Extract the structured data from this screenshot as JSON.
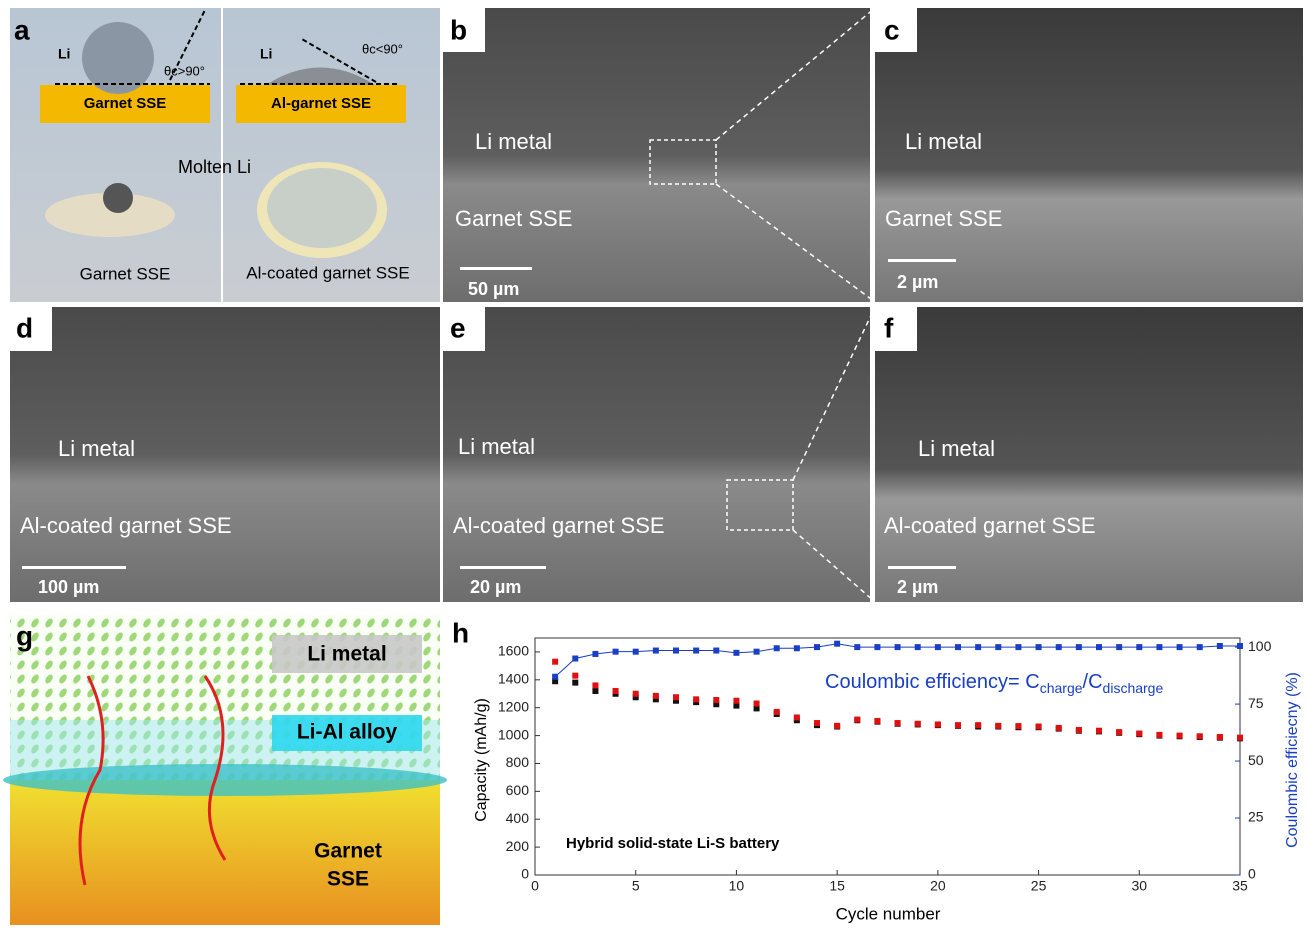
{
  "panels": {
    "a": {
      "label": "a",
      "left_li": "Li",
      "left_angle": "θc>90°",
      "left_substrate": "Garnet SSE",
      "right_li": "Li",
      "right_angle": "θc<90°",
      "right_substrate": "Al-garnet SSE",
      "molten": "Molten Li",
      "left_caption": "Garnet SSE",
      "right_caption": "Al-coated garnet SSE"
    },
    "b": {
      "label": "b",
      "top": "Li metal",
      "bottom": "Garnet SSE",
      "scale": "50 µm"
    },
    "c": {
      "label": "c",
      "top": "Li metal",
      "bottom": "Garnet SSE",
      "scale": "2 µm"
    },
    "d": {
      "label": "d",
      "top": "Li metal",
      "bottom": "Al-coated garnet SSE",
      "scale": "100 µm"
    },
    "e": {
      "label": "e",
      "top": "Li metal",
      "bottom": "Al-coated garnet SSE",
      "scale": "20 µm"
    },
    "f": {
      "label": "f",
      "top": "Li metal",
      "bottom": "Al-coated garnet SSE",
      "scale": "2 µm"
    },
    "g": {
      "label": "g",
      "li": "Li metal",
      "alloy": "Li-Al alloy",
      "garnet_1": "Garnet",
      "garnet_2": "SSE"
    }
  },
  "chart_data": {
    "type": "scatter",
    "label": "h",
    "annotation": "Hybrid solid-state Li-S battery",
    "ce_text": "Coulombic efficiency= C",
    "ce_sub1": "charge",
    "ce_mid": "/C",
    "ce_sub2": "discharge",
    "xlabel": "Cycle number",
    "ylabel": "Capacity (mAh/g)",
    "y2label": "Coulombic efficiecny (%)",
    "x": [
      1,
      2,
      3,
      4,
      5,
      6,
      7,
      8,
      9,
      10,
      11,
      12,
      13,
      14,
      15,
      16,
      17,
      18,
      19,
      20,
      21,
      22,
      23,
      24,
      25,
      26,
      27,
      28,
      29,
      30,
      31,
      32,
      33,
      34,
      35
    ],
    "xlim": [
      0,
      35
    ],
    "xticks": [
      0,
      5,
      10,
      15,
      20,
      25,
      30,
      35
    ],
    "ylim": [
      0,
      1700
    ],
    "yticks": [
      0,
      200,
      400,
      600,
      800,
      1000,
      1200,
      1400,
      1600
    ],
    "y2lim": [
      0,
      104
    ],
    "y2ticks": [
      0,
      25,
      50,
      75,
      100
    ],
    "series": [
      {
        "color": "#111111",
        "values": [
          1390,
          1380,
          1320,
          1300,
          1275,
          1260,
          1250,
          1240,
          1225,
          1215,
          1195,
          1155,
          1110,
          1075,
          1065,
          1110,
          1100,
          1085,
          1080,
          1075,
          1070,
          1065,
          1065,
          1060,
          1060,
          1050,
          1035,
          1030,
          1020,
          1010,
          1000,
          995,
          990,
          985,
          980
        ]
      },
      {
        "color": "#e01010",
        "values": [
          1530,
          1430,
          1360,
          1320,
          1300,
          1285,
          1275,
          1260,
          1255,
          1250,
          1230,
          1170,
          1130,
          1090,
          1070,
          1115,
          1105,
          1090,
          1085,
          1080,
          1075,
          1075,
          1070,
          1068,
          1065,
          1055,
          1040,
          1035,
          1025,
          1015,
          1005,
          1000,
          995,
          990,
          985
        ]
      },
      {
        "color": "#1a3fc4",
        "axis": "y2",
        "line": true,
        "values": [
          87,
          95,
          97,
          98,
          98,
          98.5,
          98.5,
          98.5,
          98.5,
          97.5,
          98,
          99.5,
          99.5,
          100,
          101.5,
          100,
          100,
          100,
          100,
          100,
          100,
          100,
          100,
          100,
          100,
          100,
          100,
          100,
          100,
          100,
          100,
          100,
          100,
          100.5,
          100.5
        ]
      }
    ]
  }
}
